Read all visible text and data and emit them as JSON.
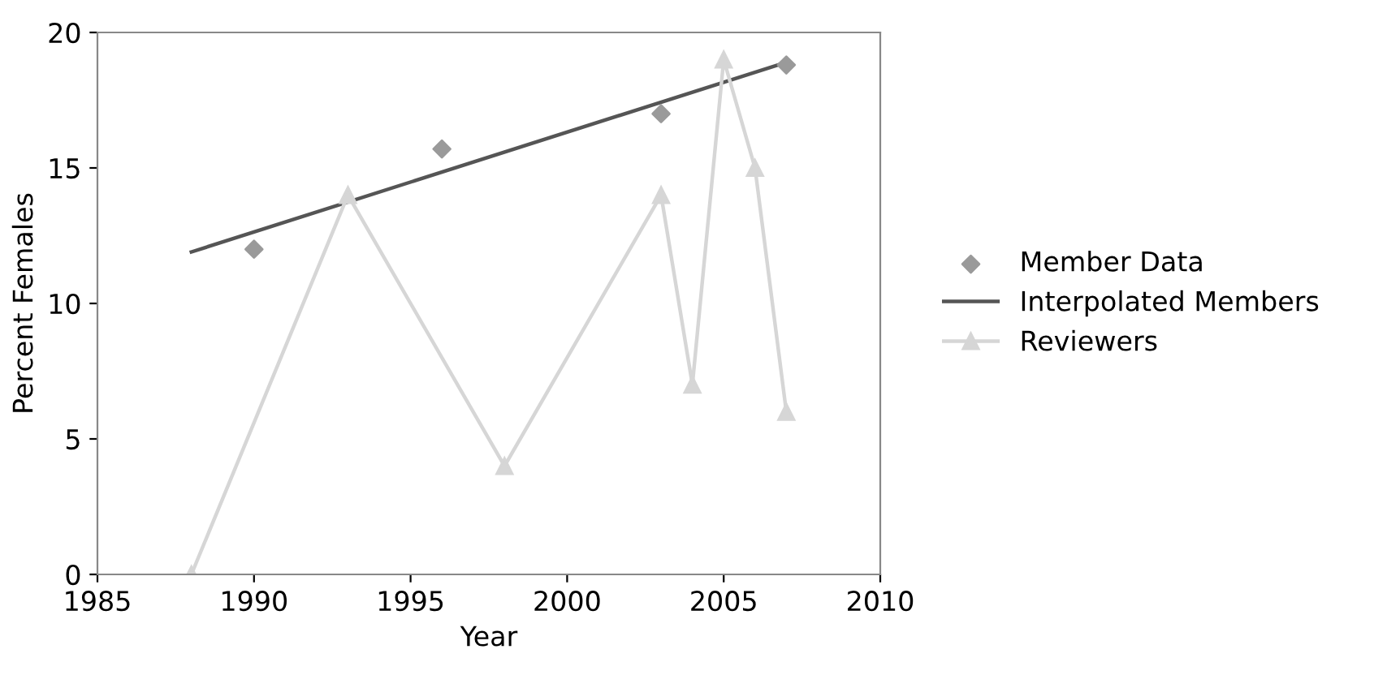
{
  "chart_data": {
    "type": "line",
    "xlabel": "Year",
    "ylabel": "Percent Females",
    "xlim": [
      1985,
      2010
    ],
    "xticks": [
      1985,
      1990,
      1995,
      2000,
      2005,
      2010
    ],
    "ylim": [
      0,
      20
    ],
    "yticks": [
      0,
      5,
      10,
      15,
      20
    ],
    "grid": false,
    "legend": "right",
    "series": [
      {
        "name": "Member Data",
        "type": "scatter",
        "marker": "diamond",
        "color": "#9a9a9a",
        "x": [
          1990,
          1996,
          2003,
          2007
        ],
        "values": [
          12,
          15.7,
          17,
          18.8
        ]
      },
      {
        "name": "Interpolated Members",
        "type": "line",
        "marker": "none",
        "color": "#555555",
        "x": [
          1988,
          2007
        ],
        "values": [
          11.9,
          18.9
        ]
      },
      {
        "name": "Reviewers",
        "marker": "triangle",
        "color": "#d6d6d6",
        "x": [
          1988,
          1993,
          1998,
          2003,
          2004,
          2005,
          2006,
          2007
        ],
        "values": [
          0,
          14,
          4,
          14,
          7,
          19,
          15,
          6
        ]
      }
    ]
  }
}
